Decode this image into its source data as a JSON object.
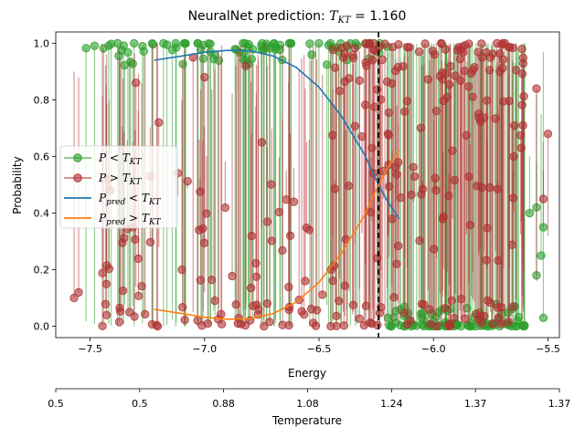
{
  "chart_data": {
    "type": "scatter",
    "title_prefix": "NeuralNet prediction: ",
    "title_math": "T",
    "title_sub": "KT",
    "title_value": " = 1.160",
    "xlabel": "Energy",
    "ylabel": "Probability",
    "xlim": [
      -7.65,
      -5.45
    ],
    "ylim": [
      -0.04,
      1.04
    ],
    "x_ticks": [
      -7.5,
      -7.0,
      -6.5,
      -6.0,
      -5.5
    ],
    "x_tick_labels": [
      "−7.5",
      "−7.0",
      "−6.5",
      "−6.0",
      "−5.5"
    ],
    "y_ticks": [
      0.0,
      0.2,
      0.4,
      0.6,
      0.8,
      1.0
    ],
    "y_tick_labels": [
      "0.0",
      "0.2",
      "0.4",
      "0.6",
      "0.8",
      "1.0"
    ],
    "vline_x": -6.24,
    "secondary_axis": {
      "label": "Temperature",
      "tick_labels": [
        "0.5",
        "0.5",
        "0.88",
        "1.08",
        "1.24",
        "1.37",
        "1.37"
      ]
    },
    "legend": {
      "placement": "center-left",
      "entries": [
        {
          "name": "P < T_KT",
          "main": "P",
          "op": " < ",
          "var": "T",
          "sub": "KT"
        },
        {
          "name": "P > T_KT",
          "main": "P",
          "op": " > ",
          "var": "T",
          "sub": "KT"
        },
        {
          "name": "P_pred < T_KT",
          "main": "P",
          "main_sub": "pred",
          "op": " < ",
          "var": "T",
          "sub": "KT"
        },
        {
          "name": "P_pred > T_KT",
          "main": "P",
          "main_sub": "pred",
          "op": " > ",
          "var": "T",
          "sub": "KT"
        }
      ]
    },
    "colors": {
      "green": "#2ca02c",
      "red": "#b03232",
      "blue": "#1f77b4",
      "orange": "#ff7f0e",
      "vline": "#000000"
    },
    "series": [
      {
        "name": "P < T_KT",
        "kind": "scatter-stems",
        "x_range": [
          -7.55,
          -5.55
        ],
        "bulk_ranges": [
          [
            -7.55,
            -6.2
          ],
          [
            -6.2,
            -5.6
          ]
        ],
        "isolated": [
          {
            "x": -5.55,
            "y": 0.42
          },
          {
            "x": -5.52,
            "y": 0.35
          },
          {
            "x": -5.53,
            "y": 0.25
          },
          {
            "x": -5.55,
            "y": 0.18
          },
          {
            "x": -5.52,
            "y": 0.03
          },
          {
            "x": -5.58,
            "y": 0.4
          }
        ]
      },
      {
        "name": "P > T_KT",
        "kind": "scatter-stems",
        "x_range": [
          -7.55,
          -5.55
        ],
        "isolated": [
          {
            "x": -7.3,
            "y": 0.86
          },
          {
            "x": -7.05,
            "y": 0.95
          },
          {
            "x": -6.82,
            "y": 0.92
          },
          {
            "x": -6.75,
            "y": 0.65
          },
          {
            "x": -7.0,
            "y": 0.88
          },
          {
            "x": -5.5,
            "y": 0.68
          },
          {
            "x": -5.55,
            "y": 0.84
          },
          {
            "x": -5.52,
            "y": 0.45
          },
          {
            "x": -7.42,
            "y": 0.52
          },
          {
            "x": -7.2,
            "y": 0.72
          },
          {
            "x": -7.55,
            "y": 0.12
          },
          {
            "x": -7.57,
            "y": 0.1
          }
        ]
      },
      {
        "name": "P_pred < T_KT",
        "kind": "line",
        "x": [
          -7.22,
          -7.1,
          -7.0,
          -6.9,
          -6.8,
          -6.7,
          -6.6,
          -6.5,
          -6.4,
          -6.3,
          -6.24,
          -6.2,
          -6.15
        ],
        "y": [
          0.94,
          0.955,
          0.968,
          0.975,
          0.973,
          0.955,
          0.915,
          0.845,
          0.74,
          0.605,
          0.5,
          0.44,
          0.38
        ]
      },
      {
        "name": "P_pred > T_KT",
        "kind": "line",
        "x": [
          -7.22,
          -7.1,
          -7.0,
          -6.9,
          -6.8,
          -6.7,
          -6.6,
          -6.5,
          -6.4,
          -6.3,
          -6.24,
          -6.2,
          -6.15
        ],
        "y": [
          0.06,
          0.045,
          0.032,
          0.025,
          0.027,
          0.045,
          0.085,
          0.155,
          0.26,
          0.395,
          0.5,
          0.56,
          0.62
        ]
      }
    ]
  }
}
